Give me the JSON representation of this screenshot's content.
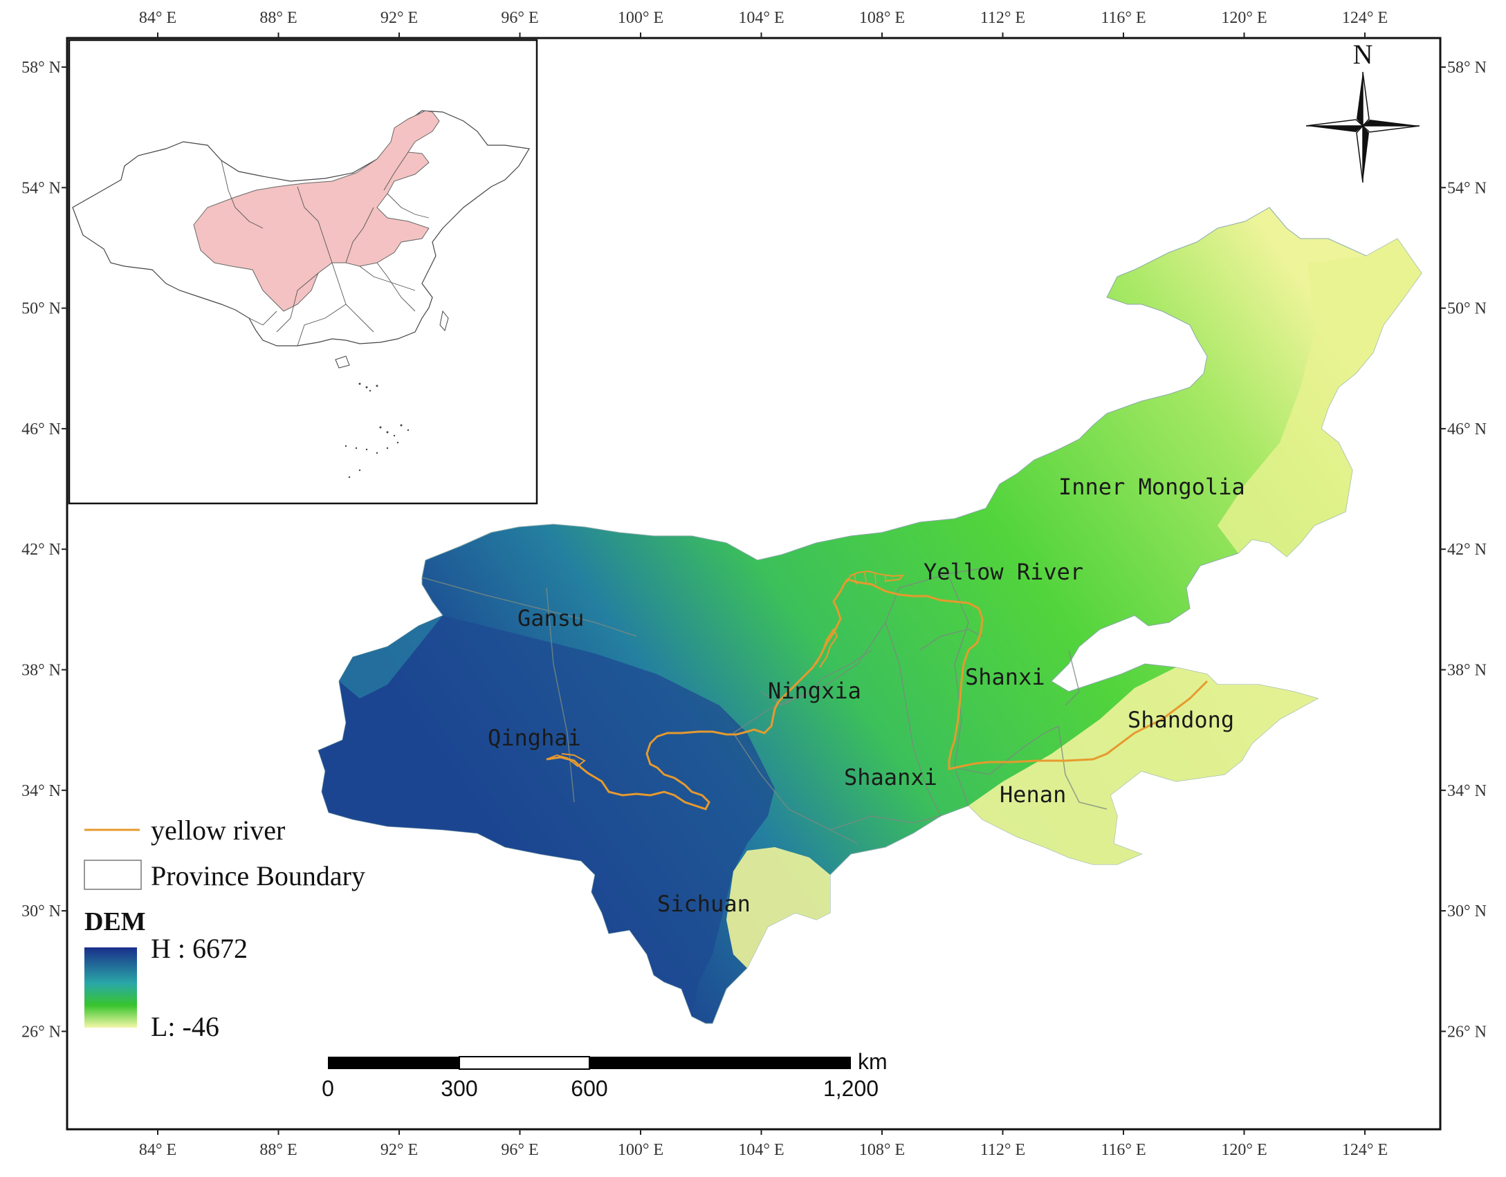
{
  "lon_ticks": [
    "84° E",
    "88° E",
    "92° E",
    "96° E",
    "100° E",
    "104° E",
    "108° E",
    "112° E",
    "116° E",
    "120° E",
    "124° E"
  ],
  "lat_ticks": [
    "58° N",
    "54° N",
    "50° N",
    "46° N",
    "42° N",
    "38° N",
    "34° N",
    "30° N",
    "26° N"
  ],
  "north_label": "N",
  "regions": {
    "inner_mongolia": "Inner Mongolia",
    "yellow_river": "Yellow River",
    "gansu": "Gansu",
    "shanxi": "Shanxi",
    "ningxia": "Ningxia",
    "shandong": "Shandong",
    "qinghai": "Qinghai",
    "shaanxi": "Shaanxi",
    "henan": "Henan",
    "sichuan": "Sichuan"
  },
  "legend": {
    "river": "yellow river",
    "boundary": "Province Boundary",
    "dem_title": "DEM",
    "dem_high": "H : 6672",
    "dem_low": "L: -46"
  },
  "scalebar": {
    "unit": "km",
    "labels": [
      "0",
      "300",
      "600",
      "1,200"
    ]
  },
  "colors": {
    "river": "#e69a2e",
    "inset_fill": "#f4c2c2",
    "dem_high": "#1a2f8a",
    "dem_mid": "#2aa8a8",
    "dem_green": "#38c42e",
    "dem_low": "#f3f7a8"
  }
}
